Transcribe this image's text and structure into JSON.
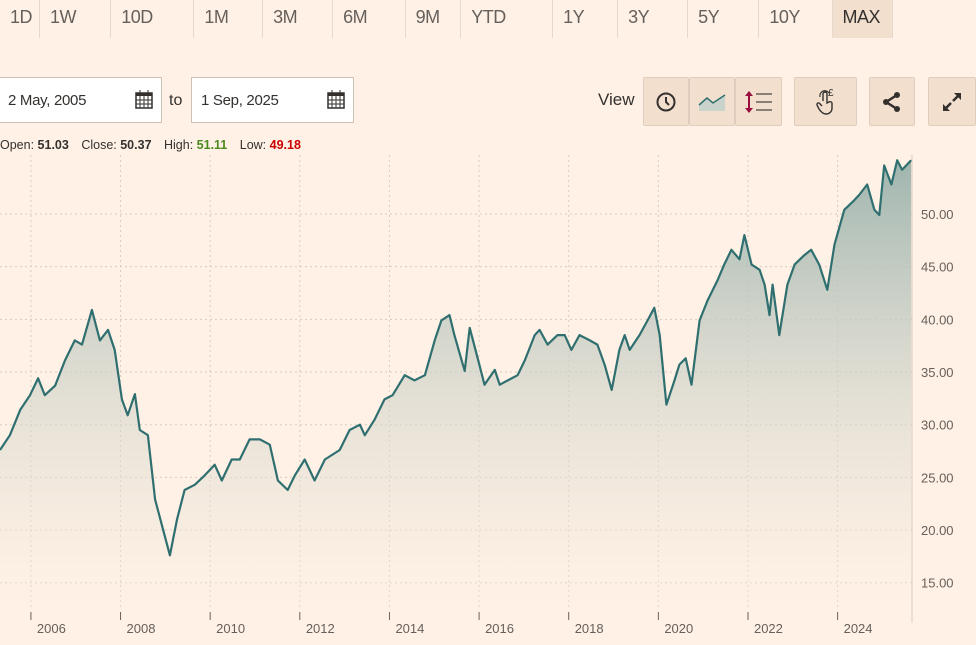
{
  "ranges": [
    "1D",
    "1W",
    "10D",
    "1M",
    "3M",
    "6M",
    "9M",
    "YTD",
    "1Y",
    "3Y",
    "5Y",
    "10Y",
    "MAX"
  ],
  "active_range": "MAX",
  "date_from": "2 May, 2005",
  "to_label": "to",
  "date_to": "1 Sep, 2025",
  "view_label": "View",
  "ohlc": {
    "open_label": "Open:",
    "open": "51.03",
    "close_label": "Close:",
    "close": "50.37",
    "high_label": "High:",
    "high": "51.11",
    "low_label": "Low:",
    "low": "49.18"
  },
  "colors": {
    "line": "#2f6f70",
    "high": "#4a8a1c",
    "low": "#cc0000",
    "bg": "#fff1e5"
  },
  "chart_data": {
    "type": "area",
    "title": "",
    "xlabel": "",
    "ylabel": "",
    "xlim": [
      2005.31,
      2025.66
    ],
    "ylim": [
      12.6,
      55.6
    ],
    "y_ticks": [
      "15.00",
      "20.00",
      "25.00",
      "30.00",
      "35.00",
      "40.00",
      "45.00",
      "50.00"
    ],
    "y_tick_values": [
      15,
      20,
      25,
      30,
      35,
      40,
      45,
      50
    ],
    "x_ticks": [
      "2006",
      "2008",
      "2010",
      "2012",
      "2014",
      "2016",
      "2018",
      "2020",
      "2022",
      "2024"
    ],
    "x_tick_values": [
      2006,
      2008,
      2010,
      2012,
      2014,
      2016,
      2018,
      2020,
      2022,
      2024
    ],
    "grid": true,
    "x": [
      2005.31,
      2005.53,
      2005.76,
      2005.98,
      2006.16,
      2006.31,
      2006.54,
      2006.76,
      2006.98,
      2007.14,
      2007.36,
      2007.54,
      2007.72,
      2007.87,
      2008.03,
      2008.16,
      2008.32,
      2008.43,
      2008.61,
      2008.77,
      2008.92,
      2009.1,
      2009.26,
      2009.43,
      2009.66,
      2009.88,
      2010.1,
      2010.26,
      2010.48,
      2010.66,
      2010.88,
      2011.11,
      2011.33,
      2011.51,
      2011.73,
      2011.89,
      2012.11,
      2012.33,
      2012.56,
      2012.89,
      2013.11,
      2013.34,
      2013.45,
      2013.67,
      2013.89,
      2014.07,
      2014.34,
      2014.56,
      2014.79,
      2015.01,
      2015.16,
      2015.34,
      2015.45,
      2015.68,
      2015.79,
      2015.97,
      2016.12,
      2016.35,
      2016.46,
      2016.64,
      2016.86,
      2017.02,
      2017.24,
      2017.35,
      2017.53,
      2017.75,
      2017.91,
      2018.06,
      2018.24,
      2018.47,
      2018.64,
      2018.8,
      2018.96,
      2019.13,
      2019.25,
      2019.36,
      2019.58,
      2019.76,
      2019.91,
      2020.03,
      2020.18,
      2020.36,
      2020.47,
      2020.61,
      2020.74,
      2020.92,
      2021.1,
      2021.32,
      2021.47,
      2021.63,
      2021.81,
      2021.92,
      2022.08,
      2022.26,
      2022.37,
      2022.48,
      2022.55,
      2022.7,
      2022.88,
      2023.04,
      2023.26,
      2023.41,
      2023.59,
      2023.77,
      2023.93,
      2024.15,
      2024.37,
      2024.48,
      2024.66,
      2024.82,
      2024.93,
      2025.04,
      2025.2,
      2025.33,
      2025.44,
      2025.64
    ],
    "values": [
      27.6,
      29.0,
      31.4,
      32.8,
      34.4,
      32.8,
      33.7,
      36.1,
      38.0,
      37.6,
      40.9,
      38.0,
      39.0,
      37.1,
      32.4,
      30.9,
      32.9,
      29.5,
      29.0,
      22.9,
      20.5,
      17.6,
      21.0,
      23.8,
      24.3,
      25.2,
      26.2,
      24.7,
      26.7,
      26.7,
      28.6,
      28.6,
      28.1,
      24.7,
      23.8,
      25.2,
      26.7,
      24.7,
      26.7,
      27.6,
      29.5,
      30.0,
      29.0,
      30.5,
      32.4,
      32.8,
      34.7,
      34.2,
      34.7,
      38.0,
      39.9,
      40.4,
      38.5,
      35.1,
      39.2,
      36.3,
      33.8,
      35.2,
      33.8,
      34.2,
      34.7,
      36.1,
      38.5,
      39.0,
      37.6,
      38.5,
      38.5,
      37.1,
      38.5,
      38.0,
      37.6,
      35.7,
      33.3,
      37.1,
      38.5,
      37.1,
      38.5,
      39.9,
      41.1,
      38.5,
      31.9,
      34.2,
      35.7,
      36.3,
      33.8,
      39.9,
      41.8,
      43.7,
      45.2,
      46.6,
      45.7,
      48.0,
      45.2,
      44.7,
      43.3,
      40.4,
      43.3,
      38.5,
      43.3,
      45.2,
      46.1,
      46.6,
      45.2,
      42.8,
      47.1,
      50.4,
      51.3,
      51.8,
      52.8,
      50.4,
      49.9,
      54.6,
      52.8,
      55.1,
      54.2,
      55.1
    ]
  }
}
